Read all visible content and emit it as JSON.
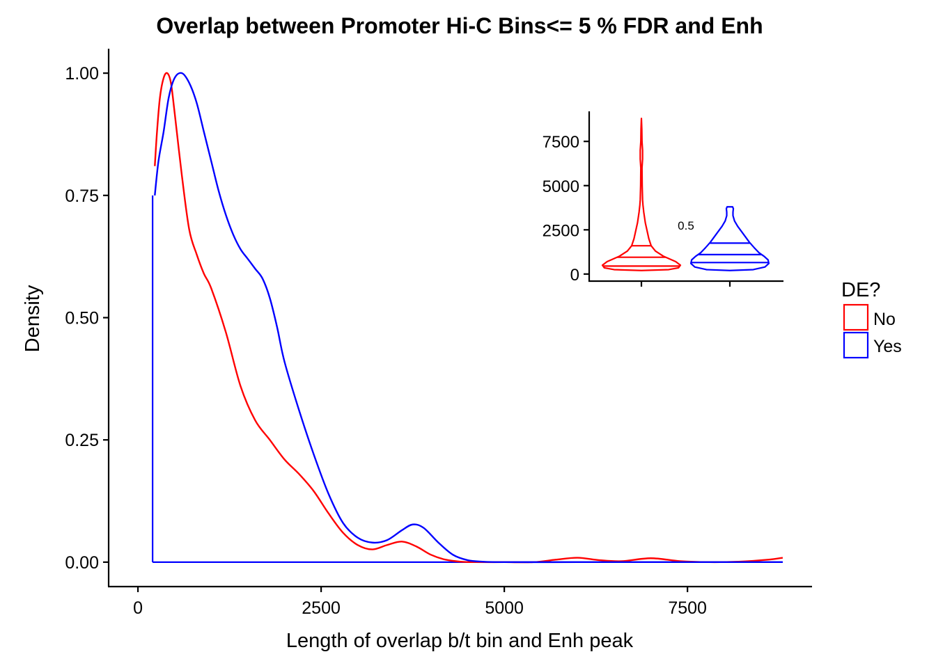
{
  "chart_data": [
    {
      "type": "line",
      "chart_type_detail": "density",
      "title": "Overlap between Promoter Hi-C Bins<= 5 % FDR and Enh",
      "xlabel": "Length of overlap b/t bin and Enh peak",
      "ylabel": "Density",
      "xlim": [
        -400,
        9200
      ],
      "ylim": [
        -0.05,
        1.05
      ],
      "x_ticks": [
        0,
        2500,
        5000,
        7500
      ],
      "x_tick_labels": [
        "0",
        "2500",
        "5000",
        "7500"
      ],
      "y_ticks": [
        0,
        0.25,
        0.5,
        0.75,
        1.0
      ],
      "y_tick_labels": [
        "0.00",
        "0.25",
        "0.50",
        "0.75",
        "1.00"
      ],
      "grid": false,
      "legend": {
        "title": "DE?",
        "position": "right",
        "entries": [
          {
            "label": "No",
            "color": "#ff0000"
          },
          {
            "label": "Yes",
            "color": "#0000ff"
          }
        ]
      },
      "series": [
        {
          "name": "No",
          "color": "#ff0000",
          "x": [
            230,
            260,
            300,
            350,
            400,
            450,
            500,
            600,
            700,
            800,
            900,
            1000,
            1200,
            1400,
            1600,
            1800,
            2000,
            2200,
            2400,
            2600,
            2800,
            3000,
            3200,
            3400,
            3600,
            3800,
            4000,
            4200,
            4400,
            4600,
            5000,
            5400,
            5700,
            6000,
            6300,
            6600,
            7000,
            7400,
            7800,
            8200,
            8600,
            8800
          ],
          "y": [
            0.81,
            0.88,
            0.95,
            0.99,
            1.0,
            0.98,
            0.92,
            0.79,
            0.68,
            0.63,
            0.59,
            0.56,
            0.47,
            0.36,
            0.29,
            0.25,
            0.21,
            0.18,
            0.145,
            0.1,
            0.06,
            0.035,
            0.026,
            0.035,
            0.042,
            0.032,
            0.015,
            0.005,
            0.001,
            0.0,
            0.0,
            0.0,
            0.005,
            0.009,
            0.004,
            0.002,
            0.008,
            0.002,
            0.0,
            0.001,
            0.005,
            0.009
          ]
        },
        {
          "name": "Yes",
          "color": "#0000ff",
          "x": [
            230,
            280,
            350,
            420,
            500,
            600,
            700,
            800,
            900,
            1000,
            1100,
            1200,
            1300,
            1400,
            1500,
            1600,
            1700,
            1800,
            1900,
            2000,
            2200,
            2400,
            2600,
            2800,
            3000,
            3200,
            3400,
            3600,
            3750,
            3900,
            4100,
            4300,
            4500,
            4700,
            5000,
            6000,
            7000,
            8000,
            8800
          ],
          "y": [
            0.75,
            0.82,
            0.88,
            0.95,
            0.99,
            1.0,
            0.98,
            0.94,
            0.88,
            0.82,
            0.76,
            0.71,
            0.67,
            0.64,
            0.62,
            0.6,
            0.58,
            0.54,
            0.48,
            0.41,
            0.31,
            0.22,
            0.14,
            0.08,
            0.05,
            0.04,
            0.045,
            0.065,
            0.077,
            0.07,
            0.04,
            0.015,
            0.004,
            0.001,
            0.0,
            0.0,
            0.0,
            0.0,
            0.0
          ]
        }
      ],
      "boundary_lines": [
        {
          "x": 200,
          "y_from": 0,
          "y_to": 0.75
        },
        {
          "y": 0,
          "x_from": 200,
          "x_to": 8800
        }
      ]
    },
    {
      "type": "violin",
      "title": "",
      "ylim": [
        -400,
        9200
      ],
      "y_ticks": [
        0,
        2500,
        5000,
        7500
      ],
      "y_tick_labels": [
        "0",
        "2500",
        "5000",
        "7500"
      ],
      "categories": [
        "No",
        "Yes"
      ],
      "annotation": {
        "text": "0.5"
      },
      "violins": [
        {
          "name": "No",
          "color": "#ff0000",
          "profile": [
            [
              200,
              0.0
            ],
            [
              250,
              0.7
            ],
            [
              350,
              0.95
            ],
            [
              500,
              1.0
            ],
            [
              700,
              0.88
            ],
            [
              1000,
              0.57
            ],
            [
              1300,
              0.36
            ],
            [
              1600,
              0.25
            ],
            [
              2000,
              0.19
            ],
            [
              2500,
              0.14
            ],
            [
              2900,
              0.1
            ],
            [
              3200,
              0.08
            ],
            [
              3500,
              0.06
            ],
            [
              3700,
              0.05
            ],
            [
              3900,
              0.04
            ],
            [
              4200,
              0.03
            ],
            [
              5000,
              0.02
            ],
            [
              6000,
              0.015
            ],
            [
              6500,
              0.03
            ],
            [
              7000,
              0.03
            ],
            [
              7500,
              0.015
            ],
            [
              8200,
              0.01
            ],
            [
              8800,
              0.0
            ]
          ],
          "quantiles": [
            {
              "q": 0.25,
              "value": 450,
              "half_width": 1.0
            },
            {
              "q": 0.5,
              "value": 950,
              "half_width": 0.6
            },
            {
              "q": 0.75,
              "value": 1600,
              "half_width": 0.26
            }
          ]
        },
        {
          "name": "Yes",
          "color": "#0000ff",
          "profile": [
            [
              200,
              0.0
            ],
            [
              250,
              0.6
            ],
            [
              400,
              0.9
            ],
            [
              600,
              1.0
            ],
            [
              800,
              0.98
            ],
            [
              1000,
              0.88
            ],
            [
              1200,
              0.75
            ],
            [
              1500,
              0.62
            ],
            [
              1800,
              0.5
            ],
            [
              2100,
              0.4
            ],
            [
              2400,
              0.3
            ],
            [
              2700,
              0.2
            ],
            [
              3000,
              0.12
            ],
            [
              3300,
              0.08
            ],
            [
              3500,
              0.08
            ],
            [
              3700,
              0.09
            ],
            [
              3800,
              0.07
            ]
          ],
          "quantiles": [
            {
              "q": 0.25,
              "value": 650,
              "half_width": 1.0
            },
            {
              "q": 0.5,
              "value": 1100,
              "half_width": 0.85
            },
            {
              "q": 0.75,
              "value": 1750,
              "half_width": 0.5
            }
          ]
        }
      ]
    }
  ]
}
